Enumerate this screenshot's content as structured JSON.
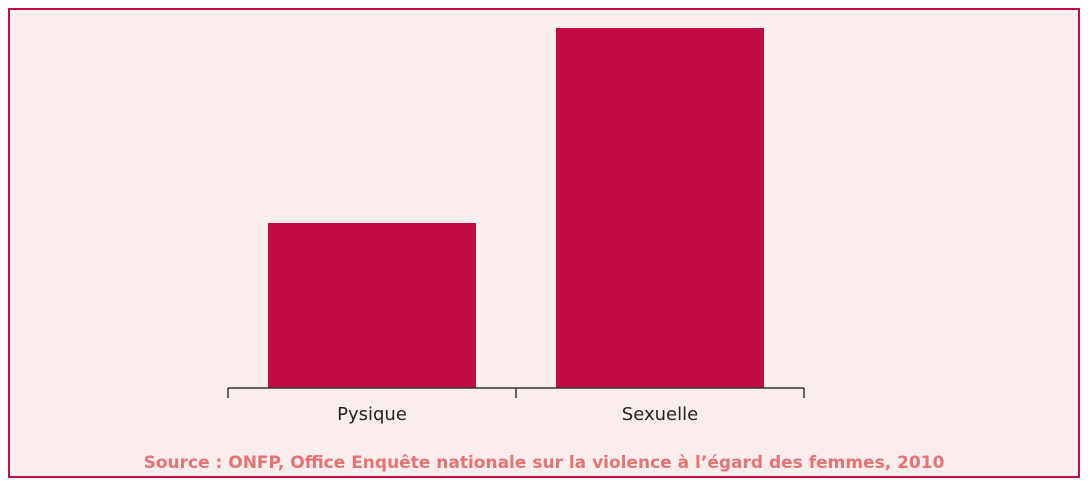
{
  "chart_data": {
    "type": "bar",
    "categories": [
      "Pysique",
      "Sexuelle"
    ],
    "values": [
      165,
      360
    ],
    "color": "#c30b43",
    "ylim": [
      0,
      360
    ],
    "source": "Source : ONFP, Office Enquête nationale sur la violence à l’égard des femmes, 2010"
  }
}
